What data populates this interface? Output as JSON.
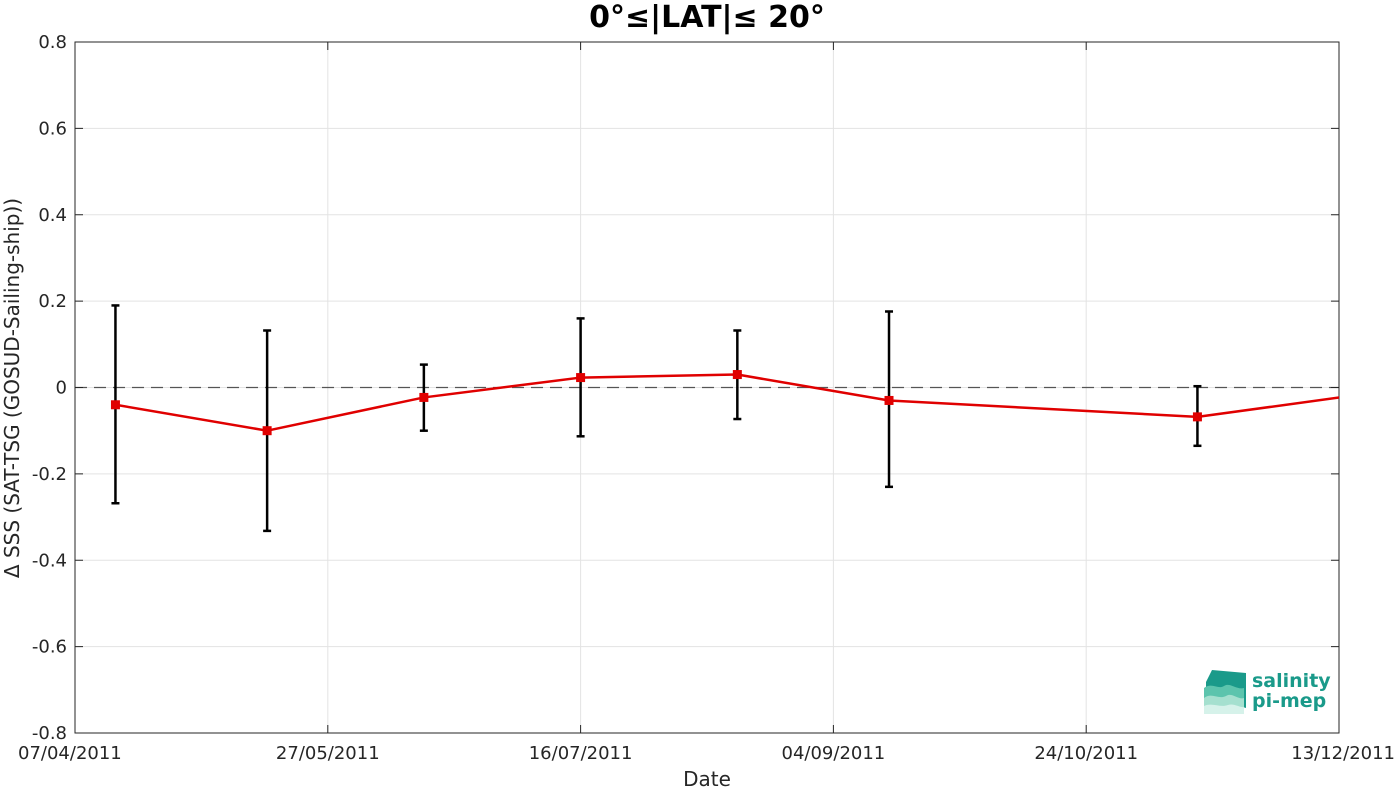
{
  "chart_data": {
    "type": "line",
    "title": "0°≤|LAT|≤ 20°",
    "xlabel": "Date",
    "ylabel": "Δ SSS (SAT-TSG (GOSUD-Sailing-ship))",
    "xlim": [
      "07/04/2011",
      "13/12/2011"
    ],
    "ylim": [
      -0.8,
      0.8
    ],
    "x_ticks": [
      "07/04/2011",
      "27/05/2011",
      "16/07/2011",
      "04/09/2011",
      "24/10/2011",
      "13/12/2011"
    ],
    "y_ticks": [
      -0.8,
      -0.6,
      -0.4,
      -0.2,
      0,
      0.2,
      0.4,
      0.6,
      0.8
    ],
    "y_tick_labels": [
      "-0.8",
      "-0.6",
      "-0.4",
      "-0.2",
      "0",
      "0.2",
      "0.4",
      "0.6",
      "0.8"
    ],
    "grid": true,
    "reference_line": 0,
    "series": [
      {
        "color": "#e00000",
        "x": [
          "15/04/2011",
          "15/05/2011",
          "15/06/2011",
          "16/07/2011",
          "16/08/2011",
          "15/09/2011",
          "15/11/2011",
          "15/12/2011"
        ],
        "y": [
          -0.04,
          -0.1,
          -0.023,
          0.023,
          0.03,
          -0.03,
          -0.068,
          -0.02
        ],
        "err_low": [
          -0.268,
          -0.332,
          -0.1,
          -0.113,
          -0.073,
          -0.23,
          -0.135,
          null
        ],
        "err_high": [
          0.19,
          0.132,
          0.053,
          0.16,
          0.132,
          0.176,
          0.003,
          null
        ]
      }
    ]
  },
  "logo": {
    "line1": "salinity",
    "line2": "pi-mep",
    "text_color": "#1a9a8a"
  }
}
